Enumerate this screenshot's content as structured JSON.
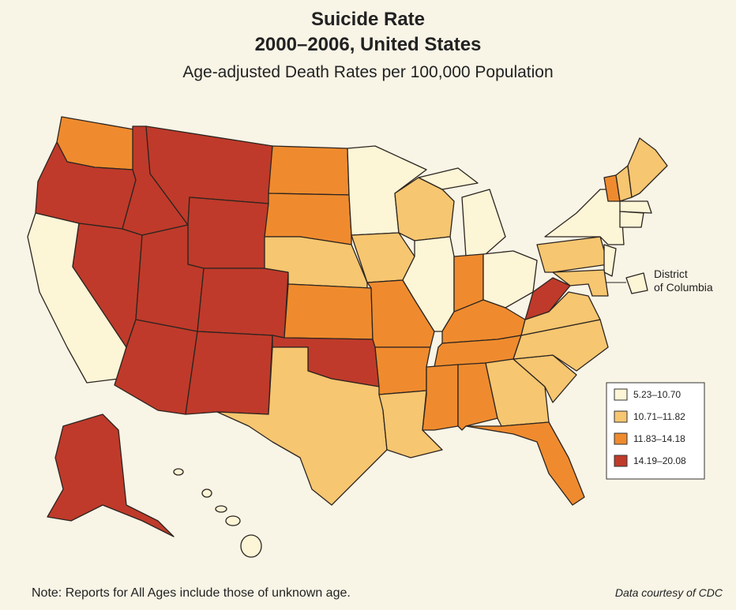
{
  "title": "Suicide Rate",
  "title2": "2000–2006, United States",
  "subtitle": "Age-adjusted Death Rates per 100,000 Population",
  "legend": {
    "items": [
      {
        "label": "5.23–10.70",
        "color": "#fcf5d6"
      },
      {
        "label": "10.71–11.82",
        "color": "#f6c670"
      },
      {
        "label": "11.83–14.18",
        "color": "#ef8b2e"
      },
      {
        "label": "14.19–20.08",
        "color": "#bf3a2a"
      }
    ]
  },
  "dc_label": "District of Columbia",
  "note": "Note: Reports for All Ages include those of unknown age.",
  "credit": "Data courtesy of CDC"
}
